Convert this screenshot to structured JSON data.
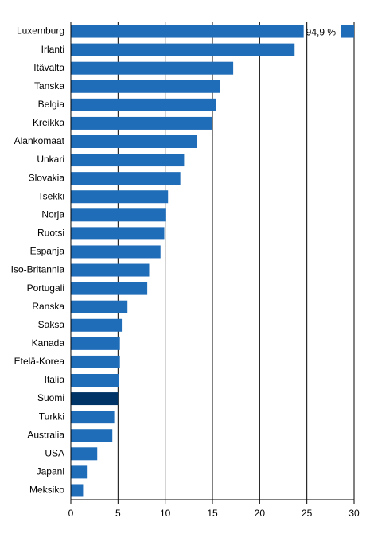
{
  "chart_data": {
    "type": "hbar",
    "categories": [
      "Luxemburg",
      "Irlanti",
      "Itävalta",
      "Tanska",
      "Belgia",
      "Kreikka",
      "Alankomaat",
      "Unkari",
      "Slovakia",
      "Tsekki",
      "Norja",
      "Ruotsi",
      "Espanja",
      "Iso-Britannia",
      "Portugali",
      "Ranska",
      "Saksa",
      "Kanada",
      "Etelä-Korea",
      "Italia",
      "Suomi",
      "Turkki",
      "Australia",
      "USA",
      "Japani",
      "Meksiko"
    ],
    "values": [
      94.9,
      23.7,
      17.2,
      15.8,
      15.4,
      15.0,
      13.4,
      12.0,
      11.6,
      10.3,
      10.1,
      9.9,
      9.5,
      8.3,
      8.1,
      6.0,
      5.4,
      5.2,
      5.2,
      5.1,
      5.0,
      4.6,
      4.4,
      2.8,
      1.7,
      1.3
    ],
    "value_labels": [
      "94,9 %",
      null,
      null,
      null,
      null,
      null,
      null,
      null,
      null,
      null,
      null,
      null,
      null,
      null,
      null,
      null,
      null,
      null,
      null,
      null,
      null,
      null,
      null,
      null,
      null,
      null
    ],
    "colors": [
      "#1f6cb8",
      "#1f6cb8",
      "#1f6cb8",
      "#1f6cb8",
      "#1f6cb8",
      "#1f6cb8",
      "#1f6cb8",
      "#1f6cb8",
      "#1f6cb8",
      "#1f6cb8",
      "#1f6cb8",
      "#1f6cb8",
      "#1f6cb8",
      "#1f6cb8",
      "#1f6cb8",
      "#1f6cb8",
      "#1f6cb8",
      "#1f6cb8",
      "#1f6cb8",
      "#1f6cb8",
      "#003466",
      "#1f6cb8",
      "#1f6cb8",
      "#1f6cb8",
      "#1f6cb8",
      "#1f6cb8"
    ],
    "xlim": [
      0,
      30
    ],
    "xticks": [
      0,
      5,
      10,
      15,
      20,
      25,
      30
    ],
    "grid": true
  }
}
